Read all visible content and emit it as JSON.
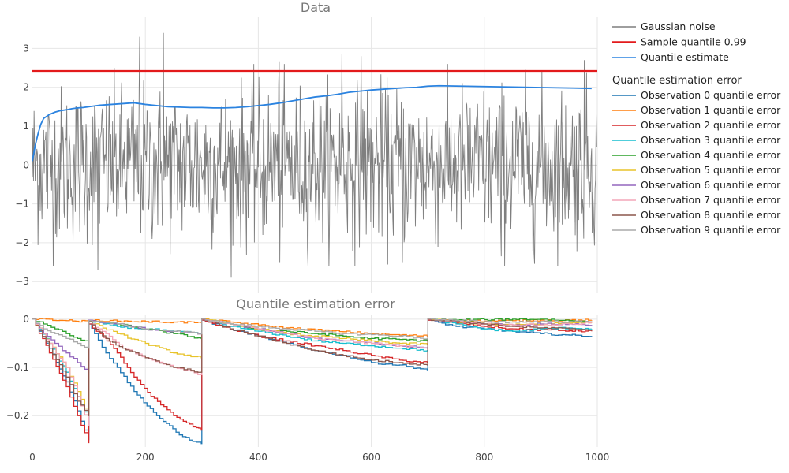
{
  "chart_data": [
    {
      "type": "line",
      "title": "Data",
      "xlabel": "",
      "ylabel": "",
      "xlim": [
        0,
        1000
      ],
      "ylim": [
        -3.3,
        3.8
      ],
      "yticks": [
        -3,
        -2,
        -1,
        0,
        1,
        2,
        3
      ],
      "ytick_labels": [
        "−3",
        "−2",
        "−1",
        "0",
        "1",
        "2",
        "3"
      ],
      "grid": true,
      "series": [
        {
          "name": "Gaussian noise",
          "color": "#7f7f7f",
          "distribution": "standard normal, 1000 samples",
          "highlight_x": [
            190,
            232,
            548,
            582,
            437,
            977
          ],
          "highlight_y": [
            3.3,
            3.4,
            2.85,
            2.8,
            2.65,
            2.7
          ],
          "low_x": [
            116,
            352,
            438,
            655,
            830
          ],
          "low_y": [
            -2.7,
            -2.9,
            -2.5,
            -2.5,
            -2.35
          ]
        },
        {
          "name": "Sample quantile 0.99",
          "color": "#e31a1c",
          "x": [
            0,
            1000
          ],
          "y": [
            2.42,
            2.42
          ]
        },
        {
          "name": "Quantile estimate",
          "color": "#2b83e0",
          "x": [
            0,
            5,
            10,
            15,
            20,
            30,
            40,
            50,
            60,
            70,
            80,
            90,
            100,
            110,
            120,
            130,
            140,
            150,
            160,
            170,
            180,
            200,
            220,
            240,
            260,
            280,
            300,
            320,
            340,
            360,
            380,
            400,
            420,
            440,
            460,
            480,
            500,
            520,
            540,
            560,
            580,
            600,
            620,
            640,
            660,
            680,
            700,
            720,
            760,
            800,
            840,
            880,
            920,
            960,
            990
          ],
          "y": [
            0.1,
            0.5,
            0.8,
            1.05,
            1.2,
            1.3,
            1.36,
            1.4,
            1.42,
            1.45,
            1.47,
            1.48,
            1.5,
            1.52,
            1.54,
            1.55,
            1.56,
            1.57,
            1.58,
            1.59,
            1.6,
            1.56,
            1.53,
            1.5,
            1.49,
            1.48,
            1.48,
            1.47,
            1.47,
            1.48,
            1.5,
            1.53,
            1.56,
            1.6,
            1.65,
            1.7,
            1.75,
            1.78,
            1.82,
            1.87,
            1.9,
            1.93,
            1.95,
            1.97,
            1.99,
            2.0,
            2.03,
            2.04,
            2.03,
            2.02,
            2.01,
            2.0,
            1.99,
            1.98,
            1.97
          ]
        }
      ]
    },
    {
      "type": "line",
      "title": "Quantile estimation error",
      "xlabel": "",
      "ylabel": "",
      "xlim": [
        0,
        1000
      ],
      "ylim": [
        -0.265,
        0.008
      ],
      "xticks": [
        0,
        200,
        400,
        600,
        800,
        1000
      ],
      "yticks": [
        0,
        -0.1,
        -0.2
      ],
      "ytick_labels": [
        "0",
        "−0.1",
        "−0.2"
      ],
      "grid": true,
      "series": [
        {
          "name": "Observation 0 quantile error",
          "color": "#1f77b4",
          "x": [
            0,
            30,
            60,
            80,
            99,
            100,
            110,
            130,
            150,
            180,
            220,
            260,
            290,
            299,
            300,
            350,
            400,
            450,
            500,
            550,
            600,
            650,
            699,
            700,
            750,
            800,
            850,
            900,
            950,
            990
          ],
          "y": [
            0,
            -0.06,
            -0.13,
            -0.19,
            -0.25,
            -0.01,
            -0.03,
            -0.07,
            -0.1,
            -0.15,
            -0.2,
            -0.24,
            -0.255,
            -0.258,
            -0.002,
            -0.02,
            -0.035,
            -0.05,
            -0.065,
            -0.075,
            -0.09,
            -0.095,
            -0.105,
            -0.002,
            -0.015,
            -0.02,
            -0.025,
            -0.03,
            -0.033,
            -0.035
          ]
        },
        {
          "name": "Observation 1 quantile error",
          "color": "#ff7f0e",
          "x": [
            0,
            30,
            60,
            99,
            100,
            150,
            200,
            250,
            299,
            300,
            350,
            400,
            450,
            500,
            550,
            600,
            650,
            699,
            700,
            750,
            800,
            850,
            900,
            950,
            990
          ],
          "y": [
            0,
            0,
            -0.003,
            -0.005,
            -0.002,
            -0.004,
            -0.005,
            -0.006,
            -0.007,
            0,
            -0.006,
            -0.012,
            -0.018,
            -0.022,
            -0.026,
            -0.03,
            -0.033,
            -0.035,
            0,
            -0.002,
            -0.004,
            -0.003,
            -0.002,
            -0.002,
            -0.002
          ]
        },
        {
          "name": "Observation 2 quantile error",
          "color": "#d62728",
          "x": [
            0,
            30,
            60,
            80,
            99,
            100,
            120,
            150,
            180,
            210,
            250,
            290,
            299,
            300,
            350,
            400,
            450,
            500,
            550,
            600,
            650,
            699,
            700,
            750,
            800,
            850,
            900,
            950,
            990
          ],
          "y": [
            0,
            -0.07,
            -0.14,
            -0.2,
            -0.256,
            -0.01,
            -0.03,
            -0.07,
            -0.12,
            -0.16,
            -0.2,
            -0.225,
            -0.23,
            -0.002,
            -0.02,
            -0.035,
            -0.045,
            -0.055,
            -0.065,
            -0.075,
            -0.085,
            -0.09,
            -0.002,
            -0.008,
            -0.015,
            -0.02,
            -0.022,
            -0.024,
            -0.025
          ]
        },
        {
          "name": "Observation 3 quantile error",
          "color": "#17becf",
          "x": [
            0,
            30,
            60,
            80,
            99,
            100,
            150,
            200,
            250,
            299,
            300,
            350,
            400,
            450,
            500,
            550,
            600,
            650,
            699,
            700,
            750,
            800,
            850,
            900,
            950,
            990
          ],
          "y": [
            0,
            -0.05,
            -0.11,
            -0.16,
            -0.21,
            -0.005,
            -0.015,
            -0.02,
            -0.025,
            -0.03,
            0,
            -0.015,
            -0.025,
            -0.035,
            -0.045,
            -0.05,
            -0.055,
            -0.06,
            -0.065,
            0,
            -0.01,
            -0.02,
            -0.025,
            -0.02,
            -0.018,
            -0.02
          ]
        },
        {
          "name": "Observation 4 quantile error",
          "color": "#2ca02c",
          "x": [
            0,
            20,
            40,
            60,
            80,
            99,
            100,
            150,
            200,
            250,
            299,
            300,
            350,
            400,
            450,
            500,
            550,
            600,
            650,
            699,
            700,
            750,
            800,
            850,
            900,
            950,
            990
          ],
          "y": [
            0,
            -0.01,
            -0.02,
            -0.03,
            -0.04,
            -0.05,
            -0.003,
            -0.01,
            -0.02,
            -0.03,
            -0.04,
            0,
            -0.01,
            -0.02,
            -0.025,
            -0.03,
            -0.035,
            -0.04,
            -0.042,
            -0.045,
            0,
            -0.002,
            -0.001,
            0,
            0,
            -0.003,
            -0.005
          ]
        },
        {
          "name": "Observation 5 quantile error",
          "color": "#e8c32a",
          "x": [
            0,
            30,
            60,
            80,
            99,
            100,
            150,
            200,
            250,
            299,
            300,
            350,
            400,
            450,
            500,
            550,
            600,
            650,
            699,
            700,
            750,
            800,
            850,
            900,
            950,
            990
          ],
          "y": [
            0,
            -0.05,
            -0.1,
            -0.15,
            -0.2,
            -0.005,
            -0.03,
            -0.05,
            -0.07,
            -0.08,
            0,
            -0.01,
            -0.02,
            -0.03,
            -0.035,
            -0.04,
            -0.045,
            -0.05,
            -0.052,
            0,
            -0.005,
            -0.01,
            -0.012,
            -0.01,
            -0.008,
            -0.005
          ]
        },
        {
          "name": "Observation 6 quantile error",
          "color": "#9467bd",
          "x": [
            0,
            20,
            40,
            60,
            80,
            99,
            100,
            150,
            200,
            250,
            299,
            300,
            350,
            400,
            450,
            500,
            550,
            600,
            650,
            699,
            700,
            750,
            800,
            850,
            900,
            950,
            990
          ],
          "y": [
            0,
            -0.03,
            -0.05,
            -0.07,
            -0.09,
            -0.11,
            -0.002,
            -0.01,
            -0.02,
            -0.025,
            -0.03,
            0,
            -0.01,
            -0.02,
            -0.03,
            -0.04,
            -0.045,
            -0.05,
            -0.055,
            -0.06,
            0,
            -0.005,
            -0.01,
            -0.012,
            -0.01,
            -0.01,
            -0.012
          ]
        },
        {
          "name": "Observation 7 quantile error",
          "color": "#f4a6b8",
          "x": [
            0,
            30,
            60,
            80,
            99,
            100,
            130,
            160,
            200,
            250,
            299,
            300,
            350,
            400,
            450,
            500,
            550,
            600,
            650,
            699,
            700,
            750,
            800,
            850,
            900,
            950,
            990
          ],
          "y": [
            0,
            -0.05,
            -0.1,
            -0.16,
            -0.22,
            -0.005,
            -0.03,
            -0.06,
            -0.08,
            -0.1,
            -0.115,
            0,
            -0.01,
            -0.02,
            -0.03,
            -0.04,
            -0.045,
            -0.05,
            -0.055,
            -0.06,
            0,
            -0.005,
            -0.01,
            -0.012,
            -0.012,
            -0.01,
            -0.008
          ]
        },
        {
          "name": "Observation 8 quantile error",
          "color": "#8c564b",
          "x": [
            0,
            30,
            60,
            80,
            99,
            100,
            130,
            160,
            200,
            250,
            299,
            300,
            350,
            400,
            450,
            500,
            550,
            600,
            650,
            699,
            700,
            750,
            800,
            850,
            900,
            950,
            990
          ],
          "y": [
            0,
            -0.06,
            -0.12,
            -0.17,
            -0.2,
            -0.005,
            -0.04,
            -0.06,
            -0.08,
            -0.1,
            -0.11,
            0,
            -0.02,
            -0.035,
            -0.05,
            -0.065,
            -0.075,
            -0.085,
            -0.09,
            -0.095,
            0,
            -0.005,
            -0.01,
            -0.015,
            -0.018,
            -0.02,
            -0.022
          ]
        },
        {
          "name": "Observation 9 quantile error",
          "color": "#aaaaaa",
          "x": [
            0,
            20,
            40,
            60,
            80,
            99,
            100,
            150,
            200,
            250,
            299,
            300,
            350,
            400,
            450,
            500,
            550,
            600,
            650,
            699,
            700,
            750,
            800,
            850,
            900,
            950,
            990
          ],
          "y": [
            0,
            -0.02,
            -0.03,
            -0.04,
            -0.05,
            -0.06,
            -0.003,
            -0.01,
            -0.02,
            -0.025,
            -0.03,
            0,
            -0.01,
            -0.015,
            -0.02,
            -0.025,
            -0.03,
            -0.032,
            -0.035,
            -0.04,
            0,
            -0.003,
            -0.005,
            -0.006,
            -0.005,
            -0.005,
            -0.006
          ]
        }
      ]
    }
  ],
  "legend": {
    "placement": "right",
    "group_title": "Quantile estimation error"
  }
}
